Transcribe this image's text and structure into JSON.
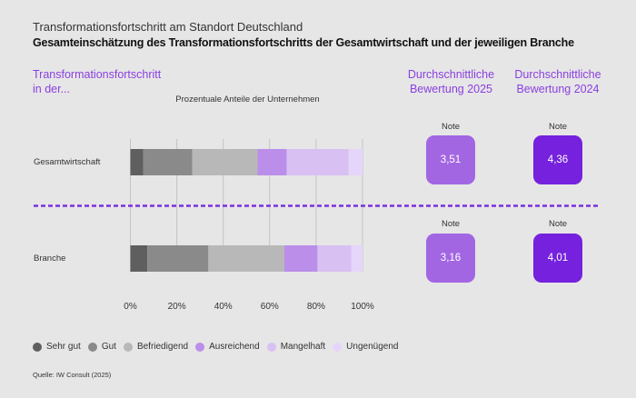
{
  "header": {
    "title": "Transformationsfortschritt am Standort Deutschland",
    "subtitle": "Gesamteinschätzung des Transformationsfortschritts der Gesamtwirtschaft und der jeweiligen Branche"
  },
  "columns": {
    "left_heading_line1": "Transformationsfortschritt",
    "left_heading_line2": "in der...",
    "rating_2025_line1": "Durchschnittliche",
    "rating_2025_line2": "Bewertung 2025",
    "rating_2024_line1": "Durchschnittliche",
    "rating_2024_line2": "Bewertung 2024"
  },
  "colors": {
    "background": "#e6e6e6",
    "accent": "#8a3fe0",
    "divider": "#7b2fe0",
    "box_2025": "#a366e3",
    "box_2024": "#7521dd"
  },
  "ratings": [
    {
      "row": "Gesamtwirtschaft",
      "note_label": "Note",
      "value_2025": "3,51",
      "value_2024": "4,36"
    },
    {
      "row": "Branche",
      "note_label": "Note",
      "value_2025": "3,16",
      "value_2024": "4,01"
    }
  ],
  "legend": [
    {
      "label": "Sehr gut",
      "color": "#5f5f5f"
    },
    {
      "label": "Gut",
      "color": "#8a8a8a"
    },
    {
      "label": "Befriedigend",
      "color": "#b8b8b8"
    },
    {
      "label": "Ausreichend",
      "color": "#bb8ee9"
    },
    {
      "label": "Mangelhaft",
      "color": "#d8c0f3"
    },
    {
      "label": "Ungenügend",
      "color": "#e6d5fa"
    }
  ],
  "source": "Quelle: IW Consult (2025)",
  "chart_data": {
    "type": "bar",
    "orientation": "horizontal",
    "stacked": true,
    "title": "Prozentuale Anteile der Unternehmen",
    "xlabel": "",
    "ylabel": "",
    "categories": [
      "Gesamtwirtschaft",
      "Branche"
    ],
    "series": [
      {
        "name": "Sehr gut",
        "values": [
          5.6,
          7.3
        ]
      },
      {
        "name": "Gut",
        "values": [
          21.1,
          26.3
        ]
      },
      {
        "name": "Befriedigend",
        "values": [
          28.1,
          32.7
        ]
      },
      {
        "name": "Ausreichend",
        "values": [
          12.5,
          14.3
        ]
      },
      {
        "name": "Mangelhaft",
        "values": [
          26.7,
          14.6
        ]
      },
      {
        "name": "Ungenügend",
        "values": [
          6.0,
          4.8
        ]
      }
    ],
    "xlim": [
      0,
      100
    ],
    "xticks": [
      "0%",
      "20%",
      "40%",
      "60%",
      "80%",
      "100%"
    ],
    "grid": true,
    "legend_position": "bottom"
  }
}
